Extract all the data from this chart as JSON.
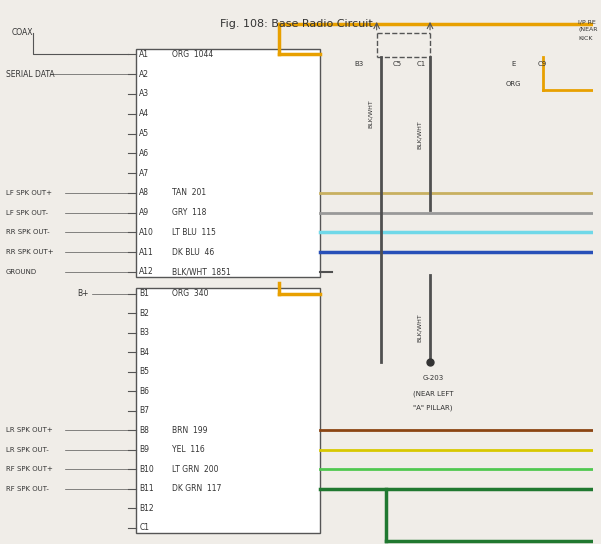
{
  "title": "Fig. 108: Base Radio Circuit",
  "bg_color": "#f0ede8",
  "A_pins": [
    "A1",
    "A2",
    "A3",
    "A4",
    "A5",
    "A6",
    "A7",
    "A8",
    "A9",
    "A10",
    "A11",
    "A12"
  ],
  "A_pin_labels": [
    "ORG  1044",
    "",
    "",
    "",
    "",
    "",
    "",
    "TAN  201",
    "GRY  118",
    "LT BLU  115",
    "DK BLU  46",
    "BLK/WHT  1851"
  ],
  "B_pins": [
    "B1",
    "B2",
    "B3",
    "B4",
    "B5",
    "B6",
    "B7",
    "B8",
    "B9",
    "B10",
    "B11",
    "B12",
    "C1"
  ],
  "B_pin_labels": [
    "ORG  340",
    "",
    "",
    "",
    "",
    "",
    "",
    "BRN  199",
    "YEL  116",
    "LT GRN  200",
    "DK GRN  117",
    "",
    ""
  ],
  "left_labels_A": {
    "0": "COAX",
    "1": "SERIAL DATA",
    "7": "LF SPK OUT+",
    "8": "LF SPK OUT-",
    "9": "RR SPK OUT-",
    "10": "RR SPK OUT+",
    "11": "GROUND"
  },
  "left_labels_B": {
    "0": "B+",
    "7": "LR SPK OUT+",
    "8": "LR SPK OUT-",
    "9": "RF SPK OUT+",
    "10": "RF SPK OUT-"
  },
  "org_color": "#E8A000",
  "tan_color": "#C8B060",
  "gry_color": "#999999",
  "ltblu_color": "#70D8E8",
  "dkblu_color": "#2850B8",
  "blkwht_color": "#505050",
  "brn_color": "#8B4513",
  "yel_color": "#D8C800",
  "ltgrn_color": "#50C850",
  "dkgrn_color": "#207830"
}
